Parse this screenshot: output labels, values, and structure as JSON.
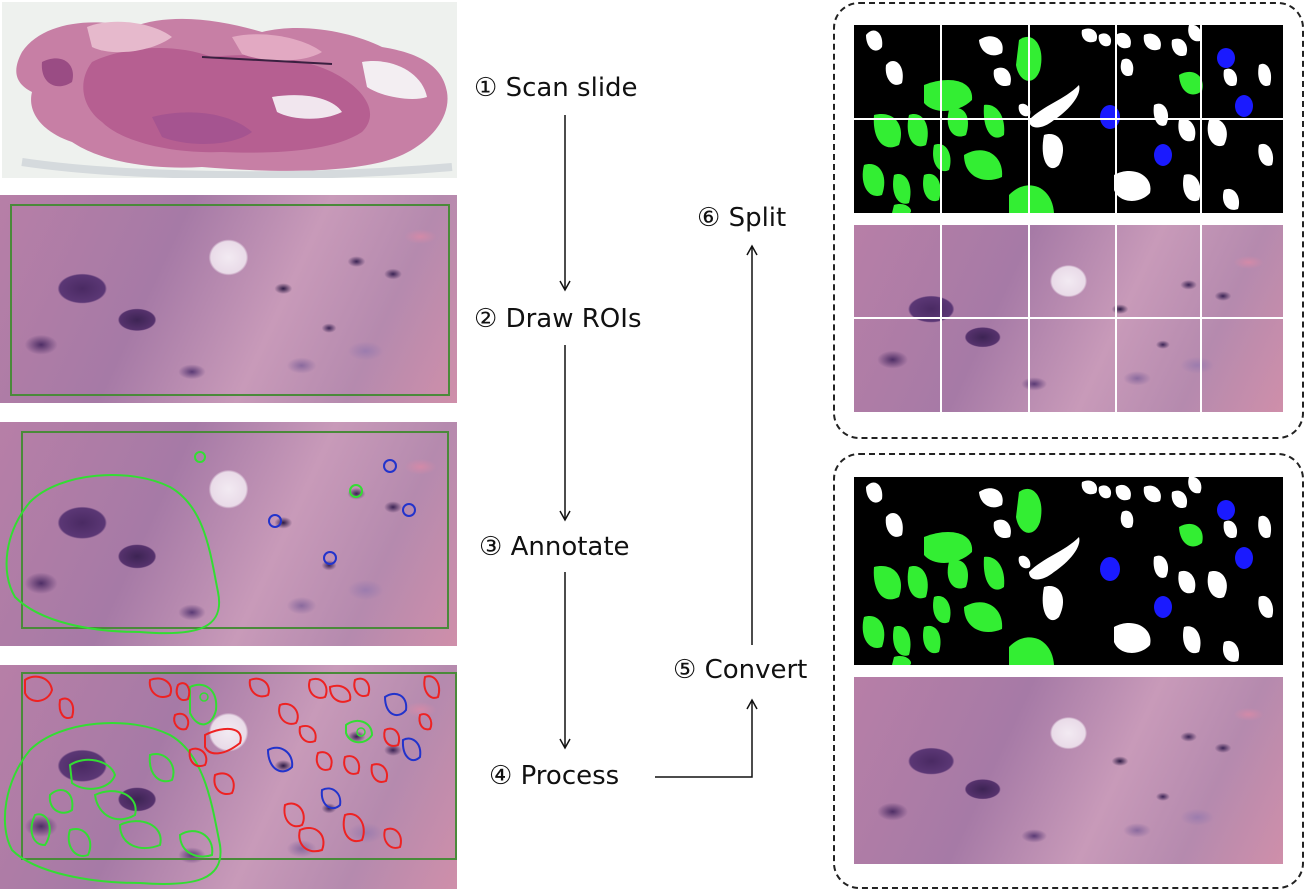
{
  "steps": [
    {
      "label": "① Scan slide"
    },
    {
      "label": "② Draw ROIs"
    },
    {
      "label": "③ Annotate"
    },
    {
      "label": "④ Process"
    },
    {
      "label": "⑤ Convert"
    },
    {
      "label": "⑥ Split"
    }
  ],
  "colors": {
    "tumor_class": "#33ee33",
    "lymphocyte_class": "#1a1aff",
    "other_class": "#ffffff",
    "outline_red": "#ee2222",
    "outline_green": "#33dd33",
    "outline_blue": "#2233cc",
    "roi_box": "#4a8a3a"
  },
  "icons": [
    "arrow-down-icon",
    "arrow-up-icon",
    "arrow-right-icon"
  ]
}
